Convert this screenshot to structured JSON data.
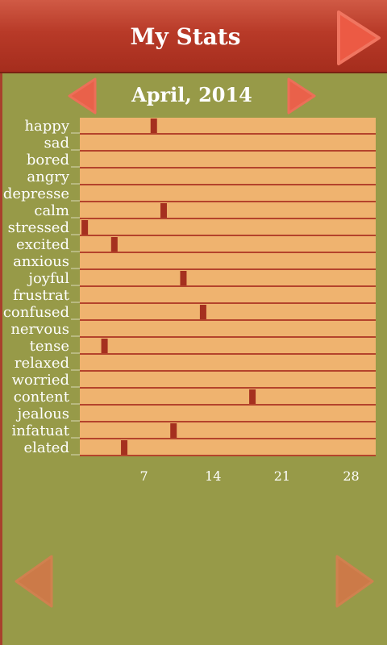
{
  "header": {
    "title": "My Stats",
    "next_icon": "arrow-right-icon"
  },
  "month_nav": {
    "label": "April, 2014",
    "prev_icon": "arrow-left-icon",
    "next_icon": "arrow-right-icon"
  },
  "bottom_nav": {
    "prev_icon": "arrow-left-icon",
    "next_icon": "arrow-right-icon"
  },
  "colors": {
    "header": "#b83a28",
    "background": "#979a48",
    "row": "#efb36f",
    "row_divider": "#b4432c",
    "marker": "#a5301f",
    "arrow": "#e9614a",
    "arrow_dim": "#cc7a48"
  },
  "chart_data": {
    "type": "timeline",
    "x_ticks": [
      7,
      14,
      21,
      28
    ],
    "xlim": [
      0,
      30
    ],
    "rows": [
      {
        "label": "happy",
        "days": [
          7.5
        ]
      },
      {
        "label": "sad",
        "days": []
      },
      {
        "label": "bored",
        "days": []
      },
      {
        "label": "angry",
        "days": []
      },
      {
        "label": "depresse",
        "days": []
      },
      {
        "label": "calm",
        "days": [
          8.5
        ]
      },
      {
        "label": "stressed",
        "days": [
          0.5
        ]
      },
      {
        "label": "excited",
        "days": [
          3.5
        ]
      },
      {
        "label": "anxious",
        "days": []
      },
      {
        "label": "joyful",
        "days": [
          10.5
        ]
      },
      {
        "label": "frustrat",
        "days": []
      },
      {
        "label": "confused",
        "days": [
          12.5
        ]
      },
      {
        "label": "nervous",
        "days": []
      },
      {
        "label": "tense",
        "days": [
          2.5
        ]
      },
      {
        "label": "relaxed",
        "days": []
      },
      {
        "label": "worried",
        "days": []
      },
      {
        "label": "content",
        "days": [
          17.5
        ]
      },
      {
        "label": "jealous",
        "days": []
      },
      {
        "label": "infatuat",
        "days": [
          9.5
        ]
      },
      {
        "label": "elated",
        "days": [
          4.5
        ]
      }
    ]
  }
}
